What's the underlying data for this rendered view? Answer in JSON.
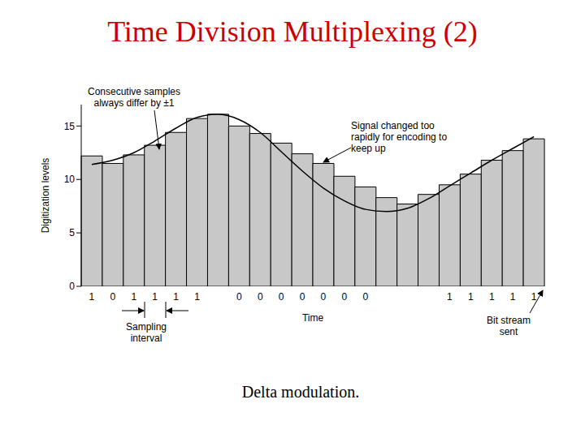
{
  "chart_data": {
    "type": "bar",
    "title": "Time Division Multiplexing (2)",
    "caption": "Delta modulation.",
    "ylabel": "Digitization levels",
    "xlabel": "Time",
    "annotations": [
      "Consecutive samples always differ by ±1",
      "Signal changed too rapidly for encoding to keep up",
      "Sampling interval",
      "Bit stream sent"
    ],
    "categories": [
      "1",
      "0",
      "1",
      "1",
      "1",
      "1",
      null,
      "0",
      "0",
      "0",
      "0",
      "0",
      "0",
      "0",
      null,
      null,
      null,
      "1",
      "1",
      "1",
      "1",
      "1"
    ],
    "series": [
      {
        "type": "bar",
        "color": "#c8c8c8",
        "values": [
          12.2,
          11.5,
          12.3,
          13.2,
          14.4,
          15.7,
          16.1,
          15.0,
          14.3,
          13.4,
          12.4,
          11.5,
          10.3,
          9.3,
          8.3,
          7.7,
          8.6,
          9.5,
          10.5,
          11.8,
          12.7,
          13.8
        ]
      },
      {
        "type": "line",
        "color": "#000000",
        "values": [
          11.4,
          11.8,
          12.5,
          13.6,
          14.8,
          15.8,
          16.1,
          15.6,
          14.4,
          12.6,
          10.8,
          9.2,
          8.0,
          7.2,
          7.0,
          7.3,
          8.2,
          9.4,
          10.6,
          11.8,
          12.9,
          14.0
        ]
      }
    ],
    "ylim": [
      0,
      17
    ],
    "yticks": [
      0,
      5,
      10,
      15
    ],
    "grid": false
  }
}
